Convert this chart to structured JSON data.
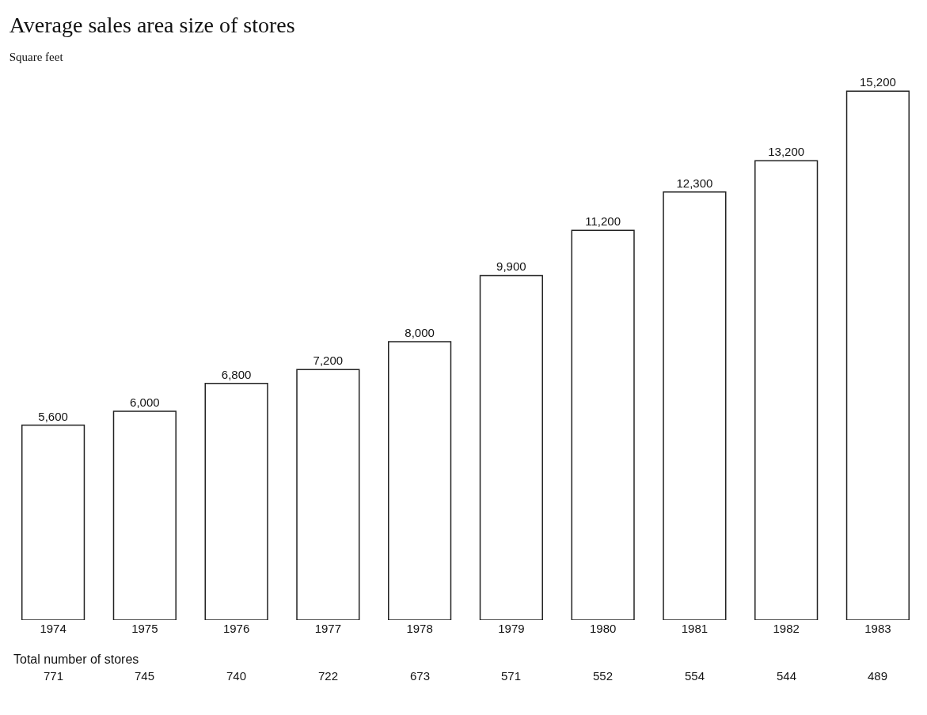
{
  "chart_data": {
    "type": "bar",
    "title": "Average sales area size of stores",
    "subtitle": "Square feet",
    "categories": [
      "1974",
      "1975",
      "1976",
      "1977",
      "1978",
      "1979",
      "1980",
      "1981",
      "1982",
      "1983"
    ],
    "values": [
      5600,
      6000,
      6800,
      7200,
      8000,
      9900,
      11200,
      12300,
      13200,
      15200
    ],
    "value_labels": [
      "5,600",
      "6,000",
      "6,800",
      "7,200",
      "8,000",
      "9,900",
      "11,200",
      "12,300",
      "13,200",
      "15,200"
    ],
    "color": "#ffffff",
    "grid": false,
    "legend": false,
    "annotations": [
      "Total number of stores",
      "771",
      "745",
      "740",
      "722",
      "673",
      "571",
      "552",
      "554",
      "544",
      "489"
    ]
  }
}
